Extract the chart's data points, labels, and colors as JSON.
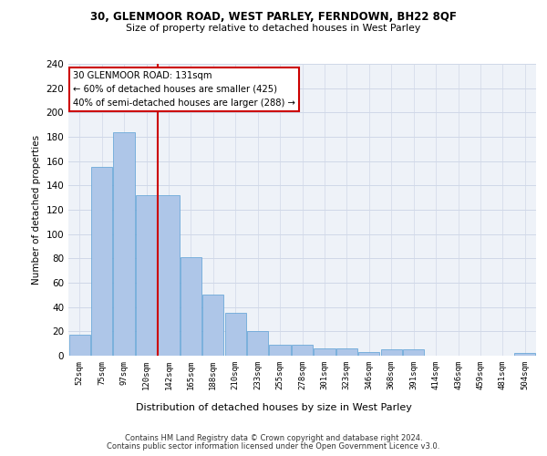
{
  "title_line1": "30, GLENMOOR ROAD, WEST PARLEY, FERNDOWN, BH22 8QF",
  "title_line2": "Size of property relative to detached houses in West Parley",
  "xlabel": "Distribution of detached houses by size in West Parley",
  "ylabel": "Number of detached properties",
  "categories": [
    "52sqm",
    "75sqm",
    "97sqm",
    "120sqm",
    "142sqm",
    "165sqm",
    "188sqm",
    "210sqm",
    "233sqm",
    "255sqm",
    "278sqm",
    "301sqm",
    "323sqm",
    "346sqm",
    "368sqm",
    "391sqm",
    "414sqm",
    "436sqm",
    "459sqm",
    "481sqm",
    "504sqm"
  ],
  "values": [
    17,
    155,
    184,
    132,
    132,
    81,
    50,
    35,
    20,
    9,
    9,
    6,
    6,
    3,
    5,
    5,
    0,
    0,
    0,
    0,
    2
  ],
  "bar_color": "#aec6e8",
  "bar_edge_color": "#5a9fd4",
  "vline_color": "#cc0000",
  "annotation_text": "30 GLENMOOR ROAD: 131sqm\n← 60% of detached houses are smaller (425)\n40% of semi-detached houses are larger (288) →",
  "annotation_box_color": "#cc0000",
  "ylim": [
    0,
    240
  ],
  "yticks": [
    0,
    20,
    40,
    60,
    80,
    100,
    120,
    140,
    160,
    180,
    200,
    220,
    240
  ],
  "grid_color": "#d0d8e8",
  "bg_color": "#eef2f8",
  "footer_line1": "Contains HM Land Registry data © Crown copyright and database right 2024.",
  "footer_line2": "Contains public sector information licensed under the Open Government Licence v3.0."
}
